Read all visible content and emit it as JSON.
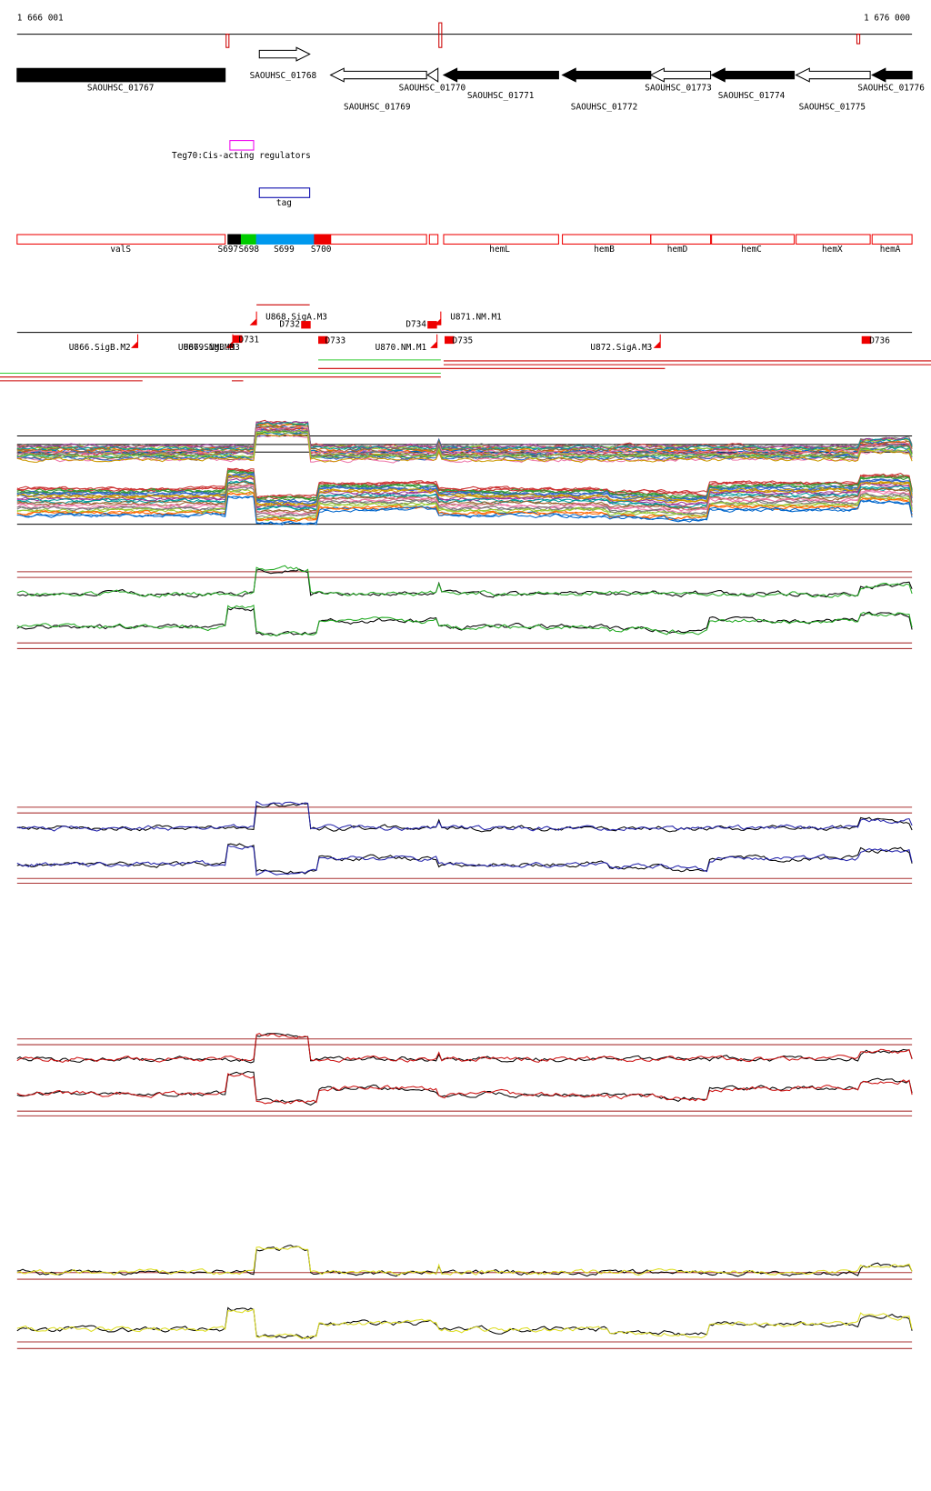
{
  "ruler": {
    "start": "1 666 001",
    "end": "1 676 000"
  },
  "genes": [
    {
      "label": "SAOUHSC_01767"
    },
    {
      "label": "SAOUHSC_01768"
    },
    {
      "label": "SAOUHSC_01769"
    },
    {
      "label": "SAOUHSC_01770"
    },
    {
      "label": "SAOUHSC_01771"
    },
    {
      "label": "SAOUHSC_01772"
    },
    {
      "label": "SAOUHSC_01773"
    },
    {
      "label": "SAOUHSC_01774"
    },
    {
      "label": "SAOUHSC_01775"
    },
    {
      "label": "SAOUHSC_01776"
    }
  ],
  "regulator": {
    "label": "Teg70:Cis-acting regulators"
  },
  "tag": {
    "label": "tag"
  },
  "segments": [
    {
      "label": "valS"
    },
    {
      "label": "S697"
    },
    {
      "label": "S698"
    },
    {
      "label": "S699"
    },
    {
      "label": "S700"
    },
    {
      "label": "hemL"
    },
    {
      "label": "hemB"
    },
    {
      "label": "hemD"
    },
    {
      "label": "hemC"
    },
    {
      "label": "hemX"
    },
    {
      "label": "hemA"
    }
  ],
  "features": [
    {
      "label": "U866.SigB.M2"
    },
    {
      "label": "U867.SigB.M3"
    },
    {
      "label": "U869.NM.M3"
    },
    {
      "label": "D731"
    },
    {
      "label": "U868.SigA.M3"
    },
    {
      "label": "D732"
    },
    {
      "label": "D733"
    },
    {
      "label": "D734"
    },
    {
      "label": "U871.NM.M1"
    },
    {
      "label": "D735"
    },
    {
      "label": "U870.NM.M1"
    },
    {
      "label": "U872.SigA.M3"
    },
    {
      "label": "D736"
    }
  ]
}
